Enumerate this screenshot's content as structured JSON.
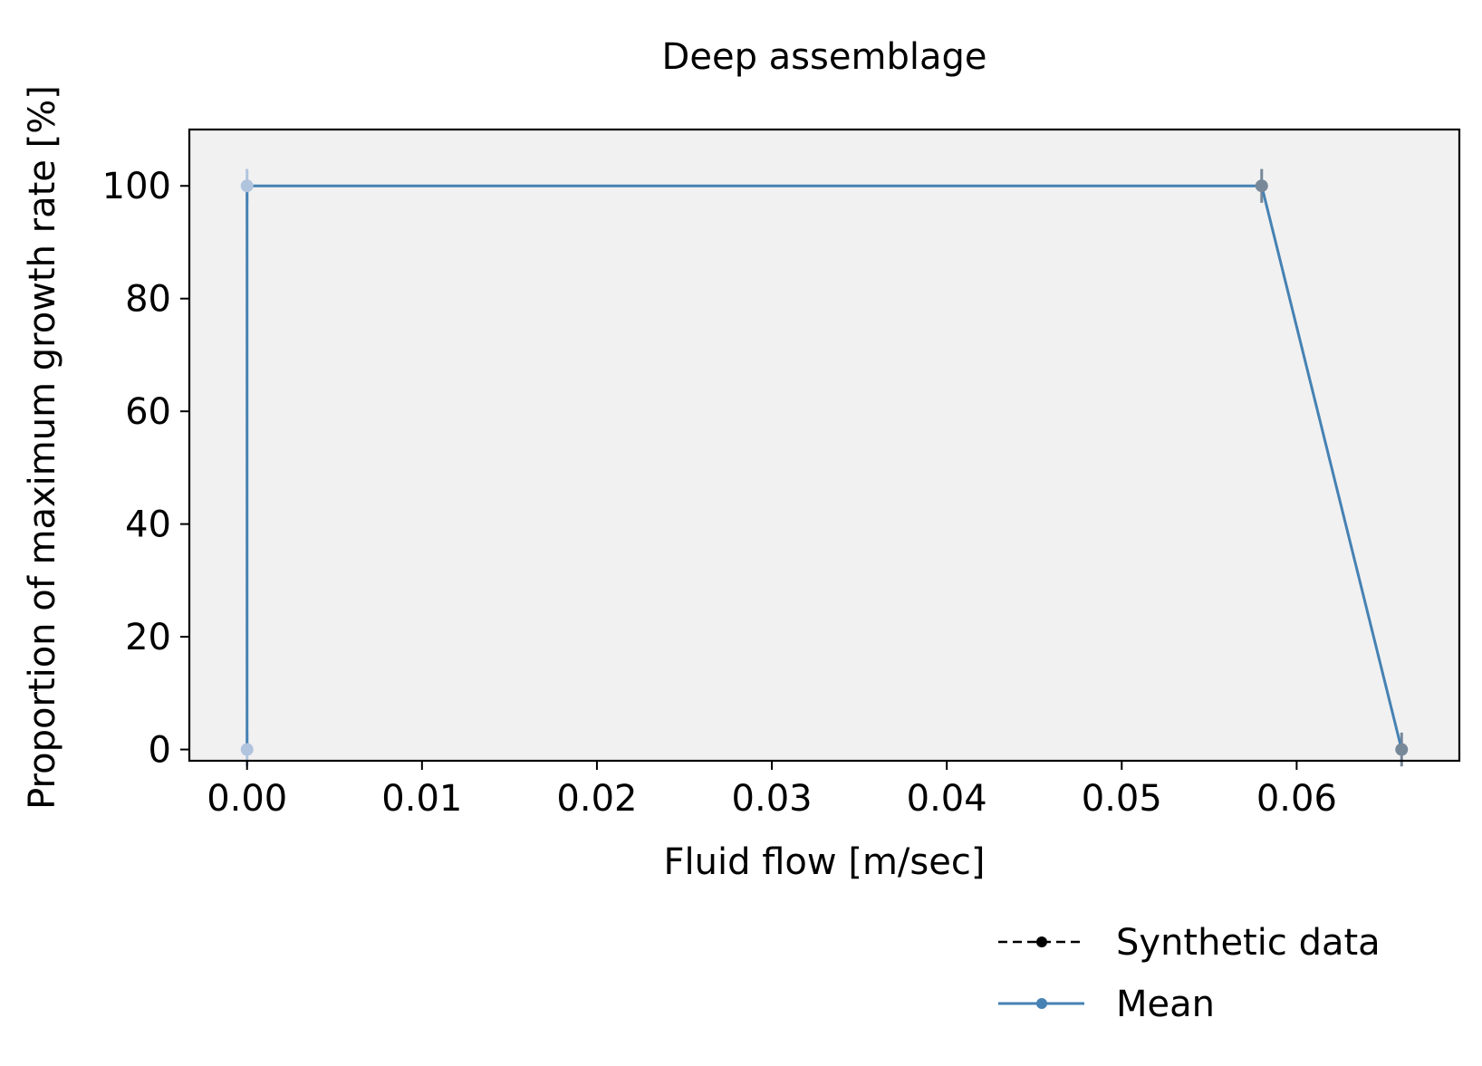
{
  "chart_data": {
    "type": "line",
    "title": "Deep assemblage",
    "xlabel": "Fluid flow [m/sec]",
    "ylabel": "Proportion of maximum growth rate [%]",
    "xlim": [
      -0.0033,
      0.0693
    ],
    "ylim": [
      -2,
      110
    ],
    "xticks": [
      "0.00",
      "0.01",
      "0.02",
      "0.03",
      "0.04",
      "0.05",
      "0.06"
    ],
    "xtick_values": [
      0,
      0.01,
      0.02,
      0.03,
      0.04,
      0.05,
      0.06
    ],
    "yticks": [
      "0",
      "20",
      "40",
      "60",
      "80",
      "100"
    ],
    "ytick_values": [
      0,
      20,
      40,
      60,
      80,
      100
    ],
    "grid": false,
    "plot_background": "#f1f1f1",
    "legend": {
      "position": "below-right",
      "entries": [
        "Synthetic data",
        "Mean"
      ]
    },
    "series": [
      {
        "name": "Synthetic data",
        "style": "dashed-dot",
        "color": "#000000",
        "x": [
          0,
          0,
          0.058,
          0.066
        ],
        "y": [
          0,
          100,
          100,
          0
        ],
        "point_colors": [
          "#b0c4de",
          "#b0c4de",
          "#778899",
          "#778899"
        ]
      },
      {
        "name": "Mean",
        "style": "solid-dot",
        "color": "#4682b4",
        "x": [
          0,
          0,
          0.058,
          0.066
        ],
        "y": [
          0,
          100,
          100,
          0
        ],
        "yerr": [
          3,
          3,
          3,
          3
        ]
      }
    ]
  }
}
